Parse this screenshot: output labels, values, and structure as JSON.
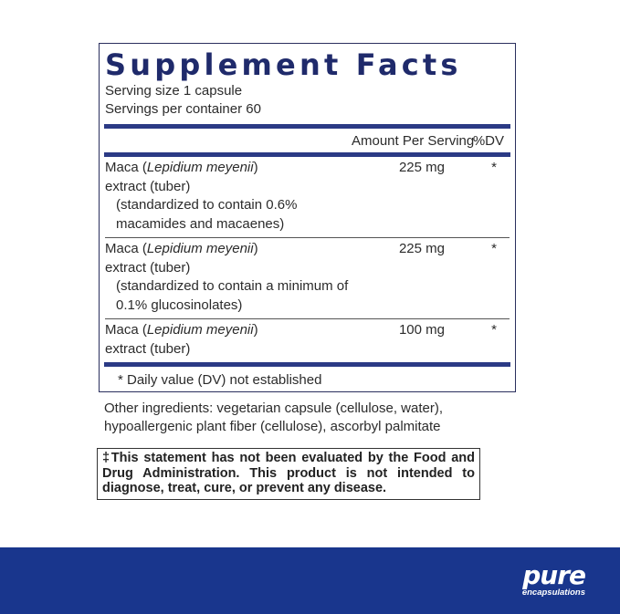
{
  "panel": {
    "title": "Supplement Facts",
    "serving_size": "Serving size  1 capsule",
    "servings_per_container": "Servings per container  60",
    "col_amount": "Amount Per Serving",
    "col_dv": "%DV",
    "rows": [
      {
        "name": "Maca (",
        "latin": "Lepidium meyenii",
        "name2": ")",
        "line2": "extract (tuber)",
        "note": "(standardized to contain 0.6% macamides and macaenes)",
        "amount": "225 mg",
        "dv": "*"
      },
      {
        "name": "Maca (",
        "latin": "Lepidium meyenii",
        "name2": ")",
        "line2": "extract (tuber)",
        "note": "(standardized to contain a minimum of 0.1% glucosinolates)",
        "amount": "225 mg",
        "dv": "*"
      },
      {
        "name": "Maca (",
        "latin": "Lepidium meyenii",
        "name2": ")",
        "line2": "extract (tuber)",
        "amount": "100 mg",
        "dv": "*"
      }
    ],
    "footnote": "* Daily value (DV) not established"
  },
  "other_ingredients": {
    "line1": "Other ingredients: vegetarian capsule (cellulose, water),",
    "line2": "hypoallergenic plant fiber (cellulose), ascorbyl palmitate"
  },
  "disclaimer": "‡This statement has not been evaluated by the Food and Drug Administration. This product is not intended to diagnose, treat, cure, or prevent any disease.",
  "brand": {
    "name": "pure",
    "sub": "encapsulations",
    "color": "#19368d"
  }
}
